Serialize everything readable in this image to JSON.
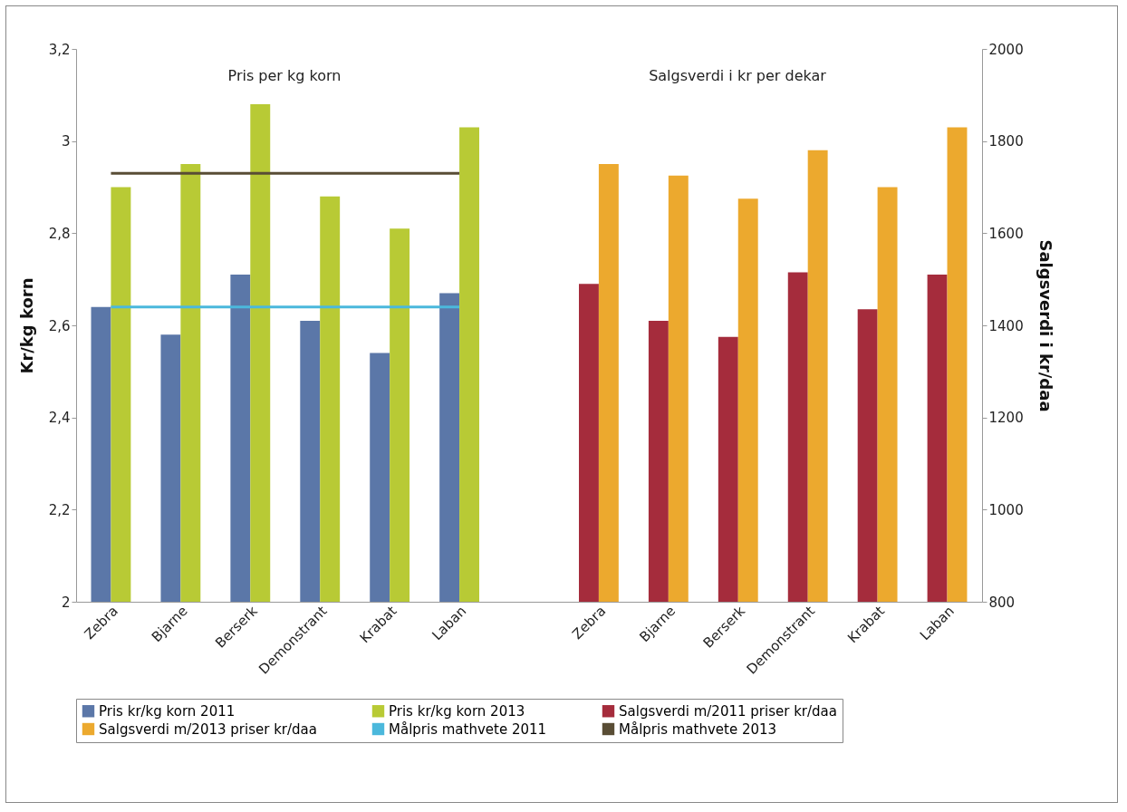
{
  "chart_data": {
    "type": "bar",
    "annotations": [
      "Pris per kg korn",
      "Salgsverdi i kr per dekar"
    ],
    "ylabel": "Kr/kg korn",
    "y2label": "Salgsverdi i kr/daa",
    "categories": [
      "Zebra",
      "Bjarne",
      "Berserk",
      "Demonstrant",
      "Krabat",
      "Laban",
      null,
      "Zebra",
      "Bjarne",
      "Berserk",
      "Demonstrant",
      "Krabat",
      "Laban"
    ],
    "series": [
      {
        "name": "Pris kr/kg korn 2011",
        "color": "#5b77a8",
        "values": [
          2.64,
          2.58,
          2.71,
          2.61,
          2.54,
          2.67,
          null,
          null,
          null,
          null,
          null,
          null,
          null
        ]
      },
      {
        "name": "Pris kr/kg korn 2013",
        "color": "#b8ca35",
        "values": [
          2.9,
          2.95,
          3.08,
          2.88,
          2.81,
          3.03,
          null,
          null,
          null,
          null,
          null,
          null,
          null
        ]
      },
      {
        "name": "Salgsverdi m/2011 priser kr/daa",
        "color": "#a52c3c",
        "axis": "y2",
        "values": [
          null,
          null,
          null,
          null,
          null,
          null,
          null,
          1490,
          1410,
          1375,
          1515,
          1435,
          1510
        ]
      },
      {
        "name": "Salgsverdi m/2013 priser kr/daa",
        "color": "#eca92e",
        "axis": "y2",
        "values": [
          null,
          null,
          null,
          null,
          null,
          null,
          null,
          1750,
          1725,
          1675,
          1780,
          1700,
          1830
        ]
      },
      {
        "name": "Målpris mathvete 2011",
        "color": "#4bb8dc",
        "type": "line",
        "values": [
          2.64,
          2.64,
          2.64,
          2.64,
          2.64,
          2.64,
          null,
          null,
          null,
          null,
          null,
          null,
          null
        ]
      },
      {
        "name": "Målpris mathvete 2013",
        "color": "#594d35",
        "type": "line",
        "values": [
          2.93,
          2.93,
          2.93,
          2.93,
          2.93,
          2.93,
          null,
          null,
          null,
          null,
          null,
          null,
          null
        ]
      }
    ],
    "ylim": [
      2,
      3.2
    ],
    "yticks": [
      2,
      {
        "value": 2.2,
        "label": "2,2"
      },
      {
        "value": 2.4,
        "label": "2,4"
      },
      {
        "value": 2.6,
        "label": "2,6"
      },
      {
        "value": 2.8,
        "label": "2,8"
      },
      3,
      {
        "value": 3.2,
        "label": "3,2"
      }
    ],
    "y2lim": [
      800,
      2000
    ],
    "y2ticks": [
      800,
      1000,
      1200,
      1400,
      1600,
      1800,
      2000
    ],
    "grid": false,
    "legend": "bottom"
  }
}
